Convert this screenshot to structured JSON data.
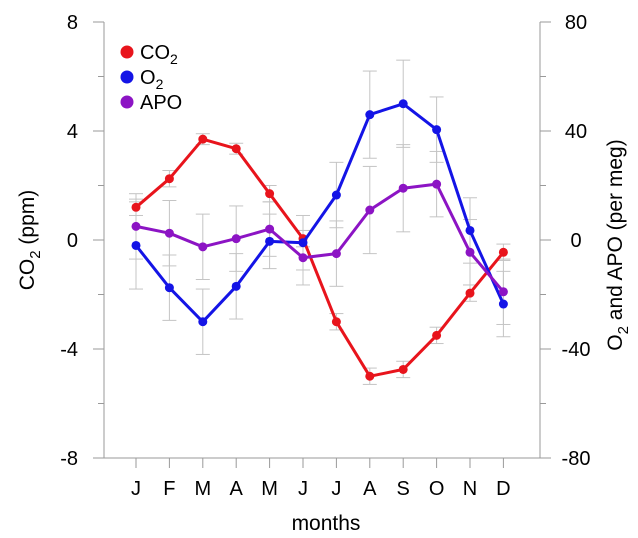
{
  "chart_data": {
    "type": "line",
    "xlabel": "months",
    "categories": [
      "J",
      "F",
      "M",
      "A",
      "M",
      "J",
      "J",
      "A",
      "S",
      "O",
      "N",
      "D"
    ],
    "left_axis": {
      "label_main": "CO",
      "label_sub": "2",
      "label_rest": " (ppm)",
      "ylim": [
        -8,
        8
      ],
      "ticks": [
        "8",
        "4",
        "0",
        "-4",
        "-8"
      ],
      "tick_values": [
        8,
        4,
        0,
        -4,
        -8
      ]
    },
    "right_axis": {
      "label_main": "O",
      "label_sub": "2",
      "label_rest": " and APO (per meg)",
      "ylim": [
        -80,
        80
      ],
      "ticks": [
        "80",
        "40",
        "0",
        "-40",
        "-80"
      ],
      "tick_values": [
        80,
        40,
        0,
        -40,
        -80
      ]
    },
    "series": [
      {
        "name": "CO2",
        "legend_main": "CO",
        "legend_sub": "2",
        "axis": "left",
        "color": "#e8141c",
        "values": [
          1.2,
          2.25,
          3.7,
          3.35,
          1.7,
          0.05,
          -3.0,
          -5.0,
          -4.75,
          -3.5,
          -1.95,
          -0.45
        ],
        "errors": [
          0.3,
          0.3,
          0.2,
          0.2,
          0.3,
          0.3,
          0.3,
          0.3,
          0.3,
          0.3,
          0.3,
          0.3
        ]
      },
      {
        "name": "O2",
        "legend_main": "O",
        "legend_sub": "2",
        "axis": "right",
        "color": "#1414e6",
        "values": [
          -2,
          -17.5,
          -30,
          -17,
          -0.5,
          -1,
          16.5,
          46,
          50,
          40.5,
          3.5,
          -23.5
        ],
        "errors": [
          16,
          12,
          12,
          12,
          10,
          10,
          12,
          16,
          16,
          12,
          12,
          12
        ]
      },
      {
        "name": "APO",
        "legend_main": "APO",
        "legend_sub": "",
        "axis": "right",
        "color": "#8c14c4",
        "values": [
          5,
          2.5,
          -2.5,
          0.5,
          4,
          -6.5,
          -5,
          11,
          19,
          20.5,
          -4.5,
          -19
        ],
        "errors": [
          12,
          12,
          12,
          12,
          10,
          10,
          12,
          16,
          16,
          12,
          12,
          12
        ]
      }
    ],
    "legend": "top-left",
    "grid": false
  }
}
